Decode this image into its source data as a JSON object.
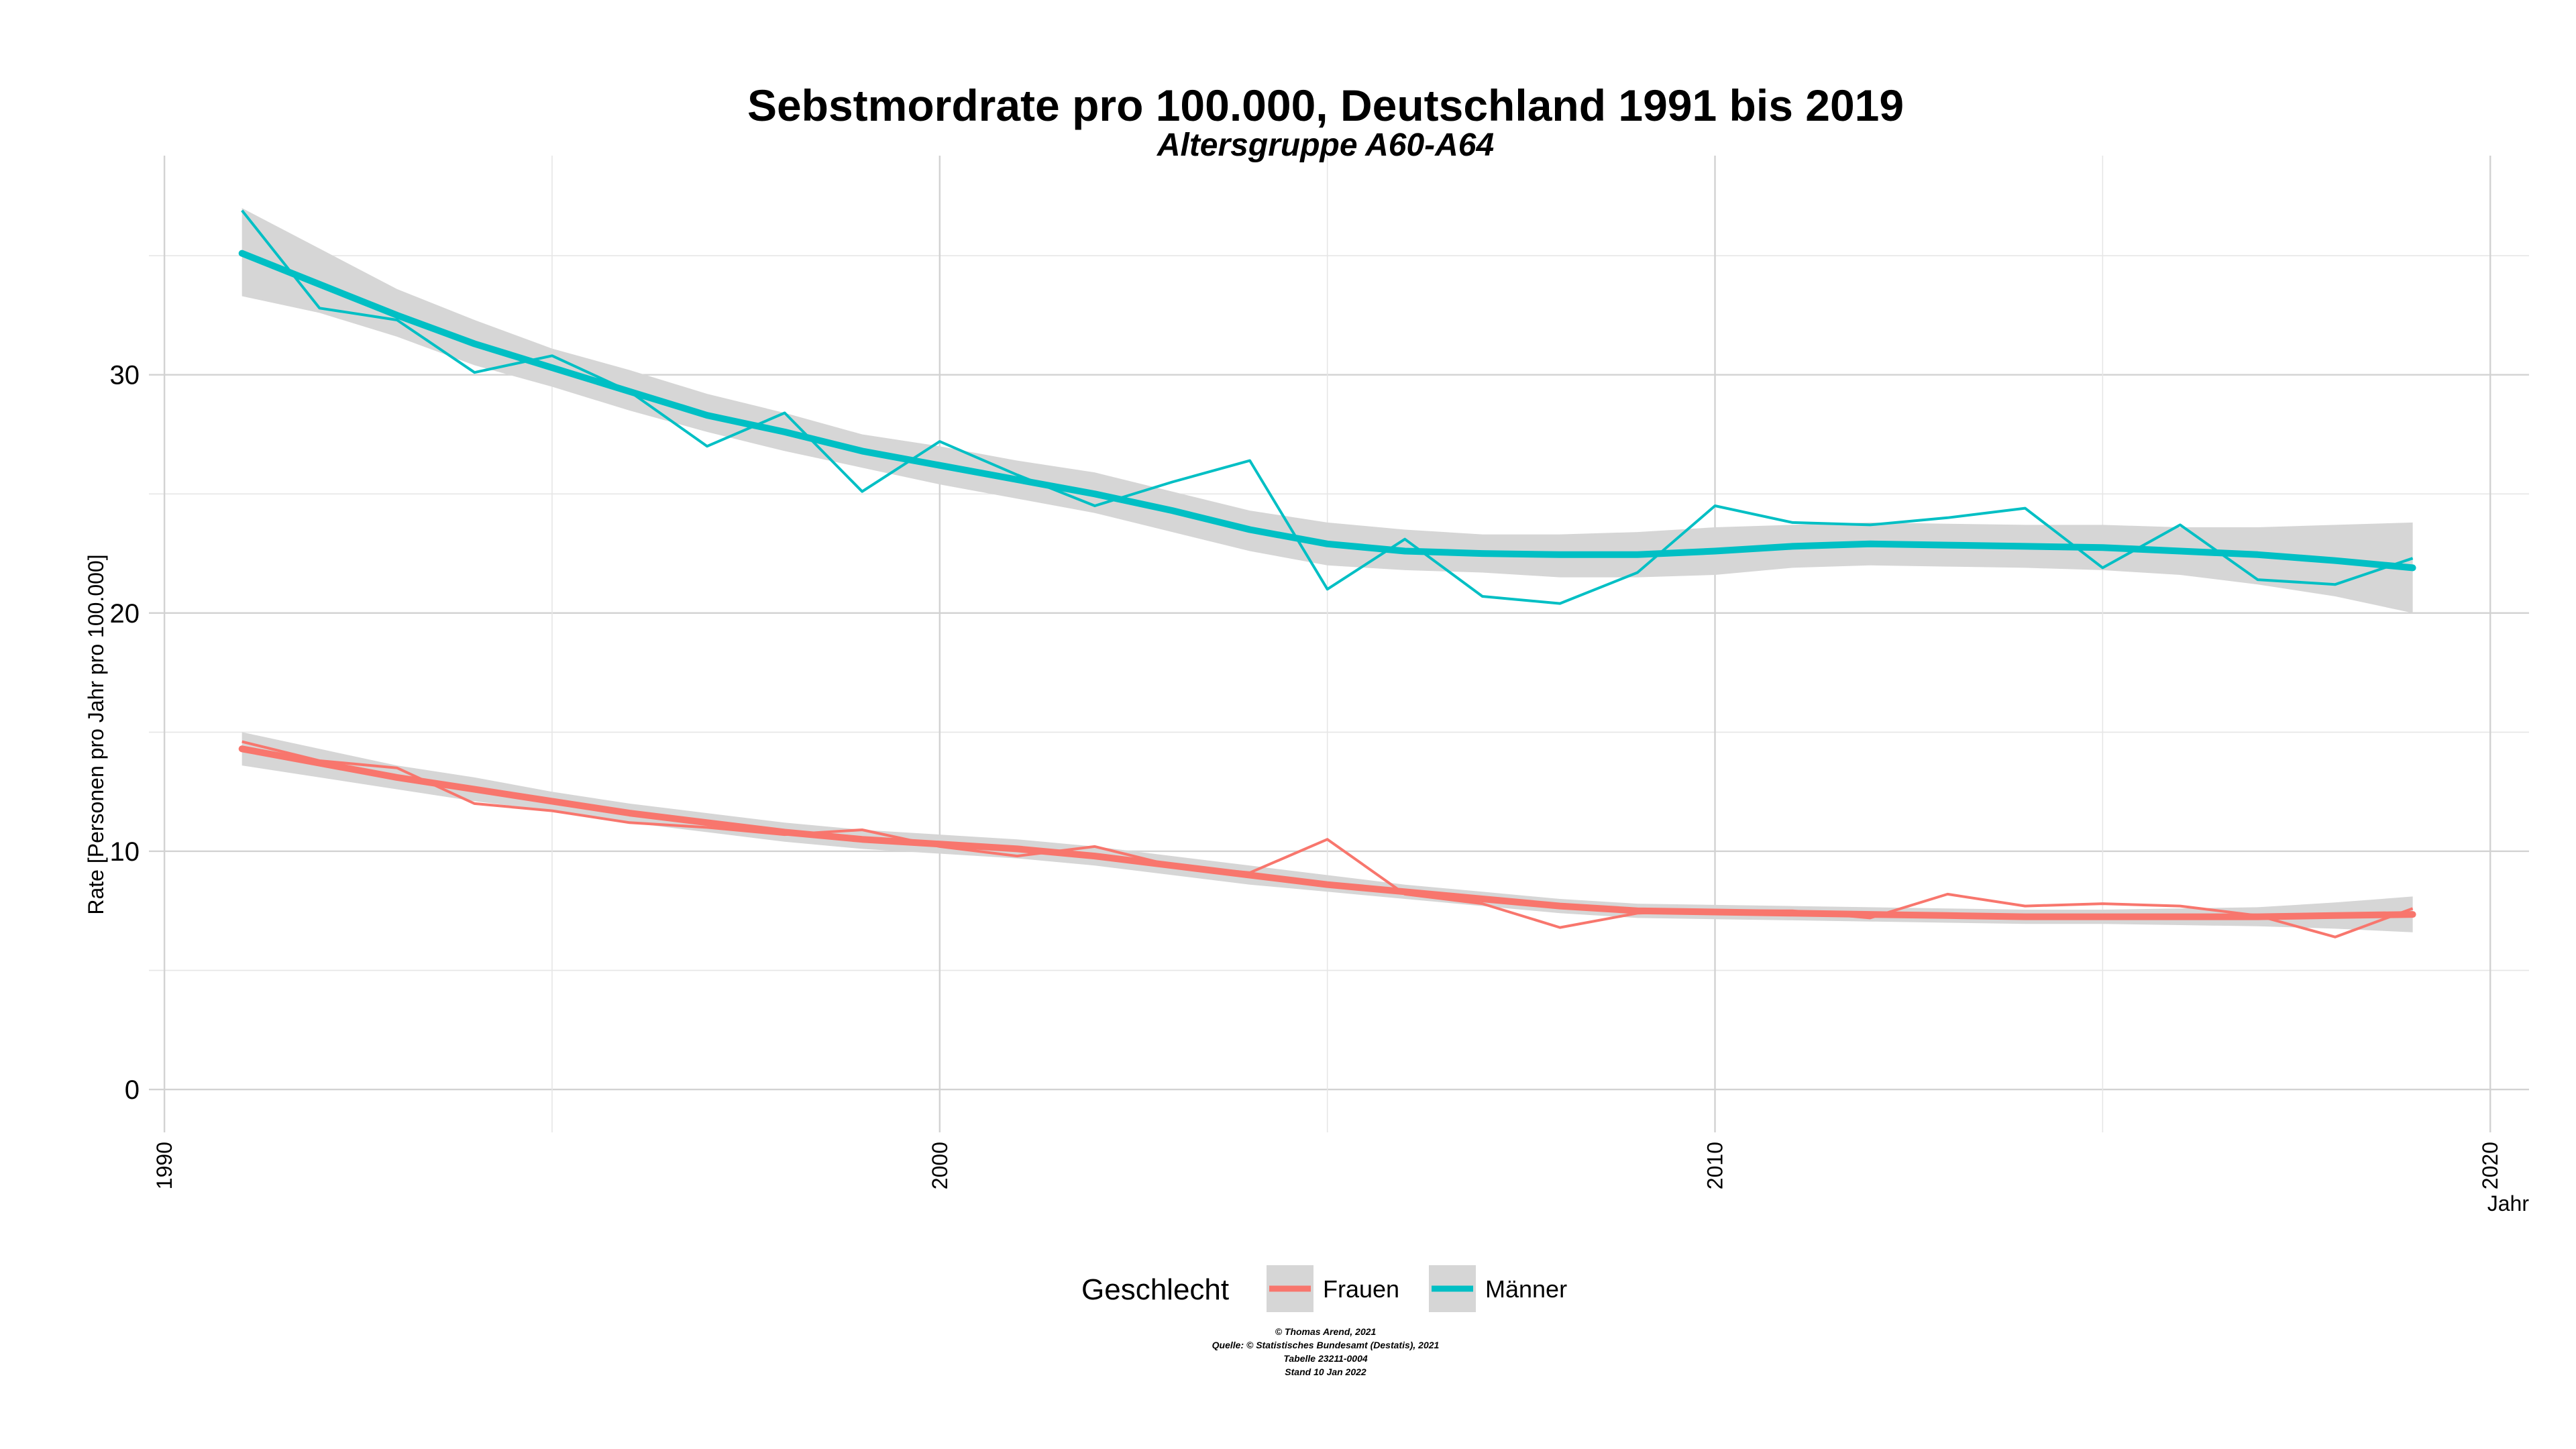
{
  "chart_data": {
    "type": "line",
    "title": "Sebstmordrate pro 100.000, Deutschland  1991 bis 2019",
    "subtitle": "Altersgruppe A60-A64",
    "xlabel": "Jahr",
    "ylabel": "Rate [Personen pro Jahr pro 100.000]",
    "xlim": [
      1989.8,
      2020.5
    ],
    "ylim": [
      -1.8,
      39.2
    ],
    "xticks": [
      1990,
      2000,
      2010,
      2020
    ],
    "yticks": [
      0,
      10,
      20,
      30
    ],
    "grid": true,
    "legend": {
      "title": "Geschlecht",
      "position": "bottom",
      "entries": [
        "Frauen",
        "Männer"
      ]
    },
    "x": [
      1991,
      1992,
      1993,
      1994,
      1995,
      1996,
      1997,
      1998,
      1999,
      2000,
      2001,
      2002,
      2003,
      2004,
      2005,
      2006,
      2007,
      2008,
      2009,
      2010,
      2011,
      2012,
      2013,
      2014,
      2015,
      2016,
      2017,
      2018,
      2019
    ],
    "series": [
      {
        "name": "Frauen",
        "color": "#F8766D",
        "values": [
          14.6,
          13.8,
          13.5,
          12.0,
          11.7,
          11.2,
          11.0,
          10.7,
          10.9,
          10.2,
          9.8,
          10.2,
          9.4,
          9.1,
          10.5,
          8.2,
          7.8,
          6.8,
          7.4,
          7.5,
          7.5,
          7.2,
          8.2,
          7.7,
          7.8,
          7.7,
          7.3,
          6.4,
          7.6
        ],
        "smooth": [
          14.3,
          13.7,
          13.1,
          12.6,
          12.1,
          11.6,
          11.2,
          10.8,
          10.5,
          10.3,
          10.1,
          9.8,
          9.4,
          9.0,
          8.6,
          8.3,
          8.0,
          7.7,
          7.5,
          7.45,
          7.4,
          7.35,
          7.3,
          7.25,
          7.25,
          7.25,
          7.25,
          7.3,
          7.35
        ],
        "band_low": [
          13.6,
          13.1,
          12.6,
          12.1,
          11.7,
          11.2,
          10.8,
          10.4,
          10.1,
          9.9,
          9.7,
          9.4,
          9.0,
          8.6,
          8.3,
          8.0,
          7.7,
          7.4,
          7.2,
          7.15,
          7.1,
          7.05,
          7.0,
          6.95,
          6.95,
          6.9,
          6.85,
          6.75,
          6.6
        ],
        "band_high": [
          15.0,
          14.3,
          13.6,
          13.1,
          12.5,
          12.0,
          11.6,
          11.2,
          10.9,
          10.7,
          10.5,
          10.2,
          9.8,
          9.4,
          9.0,
          8.6,
          8.3,
          8.0,
          7.8,
          7.75,
          7.7,
          7.65,
          7.6,
          7.55,
          7.55,
          7.6,
          7.65,
          7.85,
          8.1
        ]
      },
      {
        "name": "Männer",
        "color": "#00BFC4",
        "values": [
          36.9,
          32.8,
          32.3,
          30.1,
          30.8,
          29.3,
          27.0,
          28.4,
          25.1,
          27.2,
          25.8,
          24.5,
          25.5,
          26.4,
          21.0,
          23.1,
          20.7,
          20.4,
          21.7,
          24.5,
          23.8,
          23.7,
          24.0,
          24.4,
          21.9,
          23.7,
          21.4,
          21.2,
          22.3
        ],
        "smooth": [
          35.1,
          33.8,
          32.5,
          31.3,
          30.3,
          29.3,
          28.3,
          27.6,
          26.8,
          26.2,
          25.6,
          25.0,
          24.3,
          23.5,
          22.9,
          22.6,
          22.5,
          22.45,
          22.45,
          22.6,
          22.8,
          22.9,
          22.85,
          22.8,
          22.75,
          22.6,
          22.45,
          22.2,
          21.9
        ],
        "band_low": [
          33.3,
          32.6,
          31.6,
          30.4,
          29.5,
          28.5,
          27.6,
          26.8,
          26.1,
          25.4,
          24.8,
          24.2,
          23.4,
          22.6,
          22.0,
          21.8,
          21.7,
          21.5,
          21.5,
          21.6,
          21.9,
          22.0,
          21.95,
          21.9,
          21.8,
          21.6,
          21.2,
          20.7,
          20.0
        ],
        "band_high": [
          37.0,
          35.3,
          33.6,
          32.3,
          31.1,
          30.2,
          29.2,
          28.4,
          27.5,
          27.0,
          26.4,
          25.9,
          25.1,
          24.3,
          23.8,
          23.5,
          23.3,
          23.3,
          23.4,
          23.6,
          23.7,
          23.8,
          23.75,
          23.7,
          23.7,
          23.6,
          23.6,
          23.7,
          23.8
        ]
      }
    ],
    "caption": [
      "© Thomas Arend, 2021",
      "Quelle: © Statistisches Bundesamt (Destatis), 2021",
      "Tabelle 23211-0004",
      "Stand 10 Jan 2022"
    ]
  }
}
